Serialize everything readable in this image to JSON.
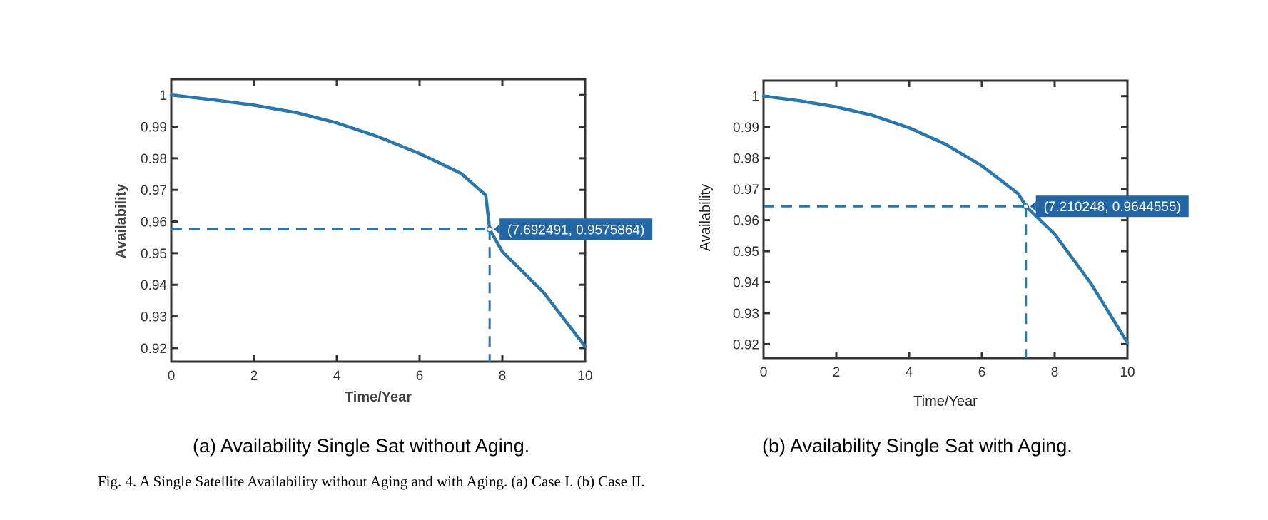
{
  "caption": {
    "figure": "Fig. 4.  A Single Satellite Availability without Aging and with Aging. (a) Case I. (b) Case II."
  },
  "chart_data": [
    {
      "id": "a",
      "type": "line",
      "subcaption": "(a) Availability Single Sat without Aging.",
      "xlabel": "Time/Year",
      "ylabel": "Availability",
      "xlim": [
        0,
        10
      ],
      "ylim": [
        0.9157,
        1.005
      ],
      "xticks": [
        0,
        2,
        4,
        6,
        8,
        10
      ],
      "yticks": [
        0.92,
        0.93,
        0.94,
        0.95,
        0.96,
        0.97,
        0.98,
        0.99,
        1
      ],
      "ytick_labels": [
        "0.92",
        "0.93",
        "0.94",
        "0.95",
        "0.96",
        "0.97",
        "0.98",
        "0.99",
        "1"
      ],
      "xtick_labels": [
        "0",
        "2",
        "4",
        "6",
        "8",
        "10"
      ],
      "grid": false,
      "line_color": "#2a77ad",
      "series": [
        {
          "x": [
            0,
            1,
            2,
            3,
            4,
            5,
            6,
            7,
            7.6,
            7.692491,
            8,
            9,
            10
          ],
          "y": [
            1.0,
            0.9985,
            0.9968,
            0.9945,
            0.9912,
            0.9868,
            0.9815,
            0.9752,
            0.9683,
            0.9575864,
            0.9505,
            0.9375,
            0.9205
          ]
        }
      ],
      "annotation": {
        "x": 7.692491,
        "y": 0.9575864,
        "text": "(7.692491, 0.9575864)"
      },
      "tip_color": "#2266a6"
    },
    {
      "id": "b",
      "type": "line",
      "subcaption": "(b) Availability Single Sat with Aging.",
      "xlabel": "Time/Year",
      "ylabel": "Availability",
      "xlim": [
        0,
        10
      ],
      "ylim": [
        0.9155,
        1.005
      ],
      "xticks": [
        0,
        2,
        4,
        6,
        8,
        10
      ],
      "yticks": [
        0.92,
        0.93,
        0.94,
        0.95,
        0.96,
        0.97,
        0.98,
        0.99,
        1
      ],
      "ytick_labels": [
        "0.92",
        "0.93",
        "0.94",
        "0.95",
        "0.96",
        "0.97",
        "0.98",
        "0.99",
        "1"
      ],
      "xtick_labels": [
        "0",
        "2",
        "4",
        "6",
        "8",
        "10"
      ],
      "grid": false,
      "line_color": "#2a77ad",
      "series": [
        {
          "x": [
            0,
            1,
            2,
            3,
            4,
            5,
            6,
            7,
            7.210248,
            8,
            9,
            10
          ],
          "y": [
            1.0,
            0.9985,
            0.9965,
            0.9938,
            0.9898,
            0.9845,
            0.9775,
            0.9685,
            0.9644555,
            0.9555,
            0.9395,
            0.9205
          ]
        }
      ],
      "annotation": {
        "x": 7.210248,
        "y": 0.9644555,
        "text": "(7.210248, 0.9644555)"
      },
      "tip_color": "#2266a6"
    }
  ]
}
